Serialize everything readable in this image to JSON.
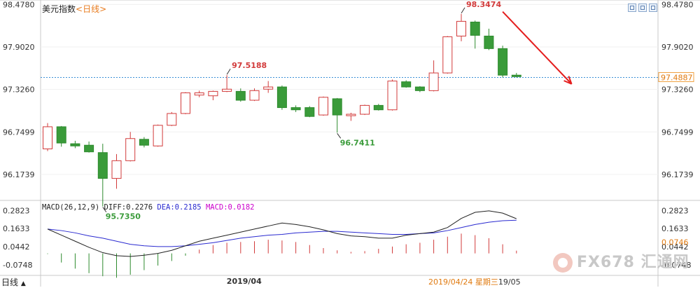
{
  "header": {
    "title": "美元指数",
    "period": "<日线>"
  },
  "toolbar": {
    "buttons": [
      "zoom-button",
      "restore-button",
      "close-button"
    ]
  },
  "chart_data": [
    {
      "type": "candlestick",
      "title": "美元指数",
      "ylim": [
        95.85,
        98.52
      ],
      "y_ticks": [
        "98.4780",
        "97.9020",
        "97.3260",
        "96.7499",
        "96.1739"
      ],
      "x_tick_labels": [
        {
          "index": 14,
          "label": "2019/04"
        }
      ],
      "candles": [
        {
          "o": 96.52,
          "c": 96.82,
          "h": 96.87,
          "l": 96.49
        },
        {
          "o": 96.82,
          "c": 96.6,
          "h": 96.83,
          "l": 96.55
        },
        {
          "o": 96.59,
          "c": 96.56,
          "h": 96.63,
          "l": 96.53
        },
        {
          "o": 96.57,
          "c": 96.48,
          "h": 96.62,
          "l": 96.47
        },
        {
          "o": 96.47,
          "c": 96.12,
          "h": 96.59,
          "l": 95.74
        },
        {
          "o": 96.12,
          "c": 96.36,
          "h": 96.45,
          "l": 95.98
        },
        {
          "o": 96.36,
          "c": 96.66,
          "h": 96.75,
          "l": 96.35
        },
        {
          "o": 96.65,
          "c": 96.57,
          "h": 96.68,
          "l": 96.54
        },
        {
          "o": 96.56,
          "c": 96.84,
          "h": 96.85,
          "l": 96.55
        },
        {
          "o": 96.84,
          "c": 97.0,
          "h": 97.02,
          "l": 96.83
        },
        {
          "o": 97.0,
          "c": 97.28,
          "h": 97.29,
          "l": 96.99
        },
        {
          "o": 97.25,
          "c": 97.28,
          "h": 97.31,
          "l": 97.22
        },
        {
          "o": 97.24,
          "c": 97.3,
          "h": 97.31,
          "l": 97.18
        },
        {
          "o": 97.3,
          "c": 97.33,
          "h": 97.52,
          "l": 97.29
        },
        {
          "o": 97.3,
          "c": 97.18,
          "h": 97.34,
          "l": 97.16
        },
        {
          "o": 97.18,
          "c": 97.31,
          "h": 97.34,
          "l": 97.17
        },
        {
          "o": 97.33,
          "c": 97.36,
          "h": 97.44,
          "l": 97.28
        },
        {
          "o": 97.36,
          "c": 97.08,
          "h": 97.38,
          "l": 97.05
        },
        {
          "o": 97.08,
          "c": 97.05,
          "h": 97.11,
          "l": 97.02
        },
        {
          "o": 97.08,
          "c": 96.96,
          "h": 97.1,
          "l": 96.95
        },
        {
          "o": 96.98,
          "c": 97.22,
          "h": 97.23,
          "l": 96.97
        },
        {
          "o": 97.2,
          "c": 96.98,
          "h": 97.21,
          "l": 96.74
        },
        {
          "o": 96.97,
          "c": 96.99,
          "h": 97.01,
          "l": 96.9
        },
        {
          "o": 96.99,
          "c": 97.11,
          "h": 97.12,
          "l": 96.98
        },
        {
          "o": 97.11,
          "c": 97.05,
          "h": 97.13,
          "l": 97.04
        },
        {
          "o": 97.05,
          "c": 97.44,
          "h": 97.46,
          "l": 97.04
        },
        {
          "o": 97.43,
          "c": 97.36,
          "h": 97.45,
          "l": 97.35
        },
        {
          "o": 97.36,
          "c": 97.31,
          "h": 97.37,
          "l": 97.29
        },
        {
          "o": 97.31,
          "c": 97.55,
          "h": 97.72,
          "l": 97.3
        },
        {
          "o": 97.55,
          "c": 98.04,
          "h": 98.05,
          "l": 97.54
        },
        {
          "o": 98.05,
          "c": 98.25,
          "h": 98.35,
          "l": 97.98
        },
        {
          "o": 98.24,
          "c": 98.06,
          "h": 98.26,
          "l": 97.88
        },
        {
          "o": 98.05,
          "c": 97.88,
          "h": 98.15,
          "l": 97.86
        },
        {
          "o": 97.88,
          "c": 97.52,
          "h": 97.92,
          "l": 97.49
        },
        {
          "o": 97.52,
          "c": 97.5,
          "h": 97.55,
          "l": 97.49
        }
      ],
      "current_price": "97.4887",
      "annotations": [
        {
          "text": "98.3474",
          "candle": 30,
          "side": "high"
        },
        {
          "text": "97.5188",
          "candle": 13,
          "side": "high"
        },
        {
          "text": "96.7411",
          "candle": 21,
          "side": "low"
        },
        {
          "text": "95.7350",
          "candle": 4,
          "side": "low"
        }
      ],
      "trend_arrow": {
        "from": [
          33,
          98.38
        ],
        "to": [
          38,
          97.4
        ]
      }
    },
    {
      "type": "macd",
      "legend": {
        "params": "MACD(26,12,9)",
        "diff": "DIFF:0.2276",
        "dea": "DEA:0.2185",
        "macd": "MACD:0.0182"
      },
      "ylim": [
        -0.14,
        0.33
      ],
      "y_ticks": [
        "0.2823",
        "0.1633",
        "0.0442",
        "-0.0748"
      ],
      "current_value": "0.0746",
      "diff": [
        0.16,
        0.12,
        0.08,
        0.04,
        0.005,
        -0.015,
        -0.02,
        -0.012,
        0.0,
        0.02,
        0.05,
        0.08,
        0.1,
        0.12,
        0.14,
        0.16,
        0.18,
        0.2,
        0.19,
        0.175,
        0.155,
        0.13,
        0.115,
        0.11,
        0.1,
        0.1,
        0.12,
        0.13,
        0.14,
        0.17,
        0.23,
        0.27,
        0.28,
        0.265,
        0.228
      ],
      "dea": [
        0.16,
        0.15,
        0.135,
        0.115,
        0.1,
        0.08,
        0.06,
        0.05,
        0.045,
        0.045,
        0.05,
        0.06,
        0.07,
        0.085,
        0.1,
        0.11,
        0.12,
        0.125,
        0.135,
        0.14,
        0.145,
        0.145,
        0.14,
        0.135,
        0.13,
        0.125,
        0.125,
        0.13,
        0.135,
        0.15,
        0.17,
        0.19,
        0.205,
        0.215,
        0.2185
      ],
      "hist": [
        -0.004,
        -0.06,
        -0.1,
        -0.13,
        -0.15,
        -0.16,
        -0.14,
        -0.11,
        -0.08,
        -0.05,
        -0.015,
        0.025,
        0.055,
        0.07,
        0.075,
        0.08,
        0.09,
        0.085,
        0.075,
        0.055,
        0.035,
        0.02,
        0.01,
        0.015,
        0.03,
        0.045,
        0.06,
        0.07,
        0.09,
        0.11,
        0.13,
        0.12,
        0.1,
        0.06,
        0.018
      ],
      "x_tick_labels": [
        {
          "index": 14,
          "label": "2019/04"
        }
      ],
      "cursor_date": "2019/04/24 星期三",
      "cursor_date_tail": "19/05"
    }
  ],
  "footer": {
    "tab": "日线"
  },
  "watermark": {
    "text": "FX678 汇通网"
  }
}
